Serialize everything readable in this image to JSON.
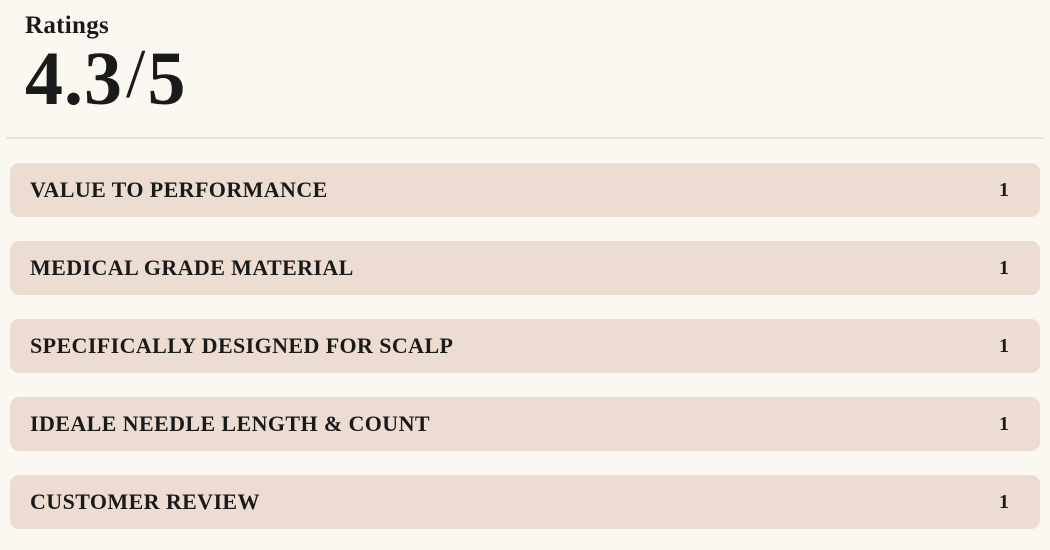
{
  "theme": {
    "page_background": "#FBF8F1",
    "row_background": "#EDDCD1",
    "text_color": "#1A1A1A",
    "divider_color": "#E6E5E0"
  },
  "ratings": {
    "heading": "Ratings",
    "score": "4.3",
    "separator": "/",
    "max": "5"
  },
  "categories": [
    {
      "label": "VALUE TO PERFORMANCE",
      "value": "1"
    },
    {
      "label": "MEDICAL GRADE MATERIAL",
      "value": "1"
    },
    {
      "label": "SPECIFICALLY DESIGNED FOR SCALP",
      "value": "1"
    },
    {
      "label": "IDEALE NEEDLE LENGTH & COUNT",
      "value": "1"
    },
    {
      "label": "CUSTOMER REVIEW",
      "value": "1"
    }
  ]
}
